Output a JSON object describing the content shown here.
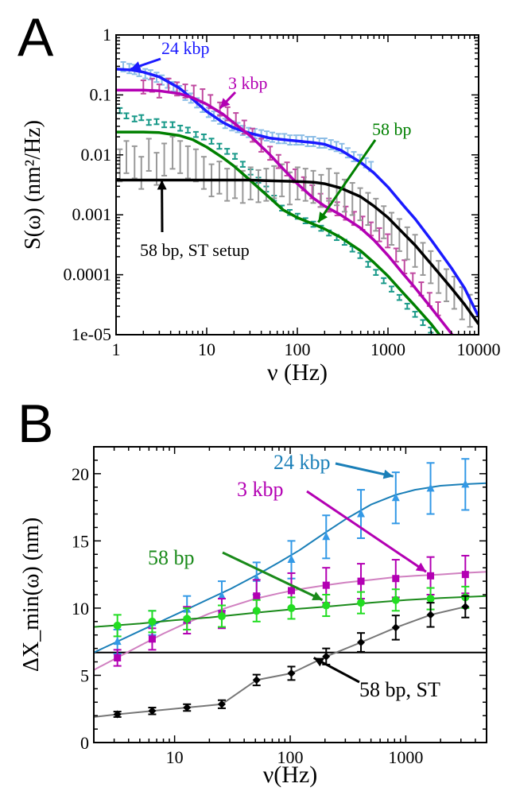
{
  "chart_data": [
    {
      "panel": "A",
      "type": "line",
      "xlabel": "ν (Hz)",
      "ylabel": "S(ω)  (nm²/Hz)",
      "xscale": "log",
      "yscale": "log",
      "xlim": [
        1,
        10000
      ],
      "ylim": [
        1e-05,
        1
      ],
      "x_ticks": [
        "1",
        "10",
        "100",
        "1000",
        "10000"
      ],
      "y_ticks": [
        "1e-05",
        "0.0001",
        "0.001",
        "0.01",
        "0.1",
        "1"
      ],
      "grid": false,
      "colors": {
        "24 kbp": "#1a1aff",
        "3 kbp": "#b300b3",
        "58 bp": "#008000",
        "58 bp, ST setup": "#000000",
        "data_24kbp": "#8cbde6",
        "data_3kbp": "#c04aa0",
        "data_58bp": "#1a9a8a",
        "data_st": "#999999"
      },
      "series": [
        {
          "name": "24 kbp",
          "kind": "fit",
          "x": [
            1,
            1.5,
            2,
            3,
            5,
            7,
            10,
            15,
            20,
            30,
            50,
            70,
            100,
            150,
            200,
            300,
            500,
            700,
            1000,
            1500,
            2000,
            3000,
            5000,
            7000,
            10000
          ],
          "y": [
            0.27,
            0.26,
            0.24,
            0.2,
            0.13,
            0.085,
            0.053,
            0.035,
            0.028,
            0.023,
            0.019,
            0.018,
            0.017,
            0.016,
            0.015,
            0.012,
            0.0075,
            0.005,
            0.0029,
            0.0014,
            0.00085,
            0.00038,
            0.00013,
            6e-05,
            2e-05
          ]
        },
        {
          "name": "3 kbp",
          "kind": "fit",
          "x": [
            1,
            2,
            3,
            5,
            7,
            10,
            15,
            20,
            30,
            50,
            70,
            100,
            150,
            200,
            300,
            500,
            700,
            1000,
            1500,
            2000,
            3000,
            5000,
            7000
          ],
          "y": [
            0.12,
            0.12,
            0.117,
            0.105,
            0.09,
            0.07,
            0.048,
            0.034,
            0.021,
            0.01,
            0.0058,
            0.0033,
            0.0019,
            0.0014,
            0.001,
            0.0006,
            0.00038,
            0.00021,
            0.0001,
            6e-05,
            2.8e-05,
            1.05e-05,
            5e-06
          ]
        },
        {
          "name": "58 bp",
          "kind": "fit",
          "x": [
            1,
            2,
            3,
            5,
            7,
            10,
            15,
            20,
            30,
            50,
            70,
            100,
            150,
            200,
            300,
            500,
            700,
            1000,
            1500,
            2000,
            3000,
            5000
          ],
          "y": [
            0.024,
            0.024,
            0.0235,
            0.021,
            0.018,
            0.0135,
            0.009,
            0.0065,
            0.0038,
            0.0019,
            0.0012,
            0.0009,
            0.0007,
            0.00058,
            0.00042,
            0.00025,
            0.00016,
            9.5e-05,
            4.8e-05,
            3e-05,
            1.5e-05,
            5.6e-06
          ]
        },
        {
          "name": "58 bp, ST setup",
          "kind": "fit",
          "x": [
            1,
            10,
            30,
            50,
            100,
            150,
            200,
            300,
            500,
            700,
            1000,
            1500,
            2000,
            3000,
            5000,
            7000,
            10000
          ],
          "y": [
            0.0038,
            0.0038,
            0.0038,
            0.0037,
            0.0036,
            0.0035,
            0.0033,
            0.0028,
            0.002,
            0.0014,
            0.0009,
            0.00048,
            0.00031,
            0.00015,
            6e-05,
            3.2e-05,
            1.5e-05
          ]
        },
        {
          "name": "24 kbp data",
          "kind": "errorbar",
          "x": [
            1.2,
            1.4,
            1.6,
            1.8,
            2.1,
            2.4,
            2.8,
            3.2,
            3.7,
            4.3,
            5,
            5.8,
            6.7,
            7.8,
            9,
            10.5,
            12,
            14,
            16,
            19,
            22,
            25,
            29,
            34,
            40,
            46,
            53,
            62,
            72,
            83,
            97,
            112,
            130,
            150,
            175,
            200,
            235,
            270,
            310,
            360,
            420,
            490,
            570,
            650
          ],
          "y": [
            0.3,
            0.28,
            0.27,
            0.25,
            0.23,
            0.22,
            0.2,
            0.18,
            0.16,
            0.14,
            0.12,
            0.1,
            0.09,
            0.075,
            0.063,
            0.052,
            0.045,
            0.04,
            0.034,
            0.031,
            0.029,
            0.026,
            0.024,
            0.023,
            0.022,
            0.021,
            0.02,
            0.019,
            0.019,
            0.018,
            0.018,
            0.018,
            0.017,
            0.017,
            0.016,
            0.016,
            0.015,
            0.014,
            0.013,
            0.011,
            0.0095,
            0.0085,
            0.0075,
            0.0065
          ],
          "err_frac": 0.18
        },
        {
          "name": "3 kbp data",
          "kind": "errorbar",
          "x": [
            2,
            2.5,
            3,
            3.8,
            4.7,
            5.8,
            7.2,
            9,
            11,
            14,
            17,
            21,
            26,
            32,
            40,
            50,
            62,
            77,
            95,
            118,
            146,
            180,
            223,
            276,
            342,
            423,
            524,
            648,
            802,
            993,
            1230,
            1520,
            1880,
            2330,
            2880,
            3570
          ],
          "y": [
            0.14,
            0.15,
            0.12,
            0.15,
            0.13,
            0.12,
            0.115,
            0.1,
            0.08,
            0.06,
            0.05,
            0.04,
            0.03,
            0.022,
            0.015,
            0.011,
            0.008,
            0.006,
            0.0046,
            0.0034,
            0.0025,
            0.0018,
            0.0015,
            0.0013,
            0.0011,
            0.0009,
            0.00075,
            0.0006,
            0.00048,
            0.00038,
            0.00022,
            0.00014,
            8.5e-05,
            6e-05,
            4e-05,
            2.8e-05
          ],
          "err_frac": 0.25
        },
        {
          "name": "58 bp data",
          "kind": "errorbar",
          "x": [
            1.1,
            1.3,
            1.6,
            1.9,
            2.3,
            2.8,
            3.4,
            4.2,
            5.1,
            6.2,
            7.6,
            9.3,
            11.3,
            13.8,
            16.8,
            20.5,
            25,
            30.5,
            37.2,
            45.4,
            55.4,
            67.6,
            82.5,
            100.7,
            123,
            150,
            183,
            223,
            272,
            332,
            405,
            494,
            603,
            736,
            898,
            1096,
            1337,
            1632,
            1991,
            2430,
            2965
          ],
          "y": [
            0.055,
            0.045,
            0.04,
            0.042,
            0.035,
            0.036,
            0.032,
            0.032,
            0.028,
            0.026,
            0.022,
            0.02,
            0.017,
            0.014,
            0.0115,
            0.0095,
            0.007,
            0.0052,
            0.0038,
            0.0027,
            0.0019,
            0.0013,
            0.0011,
            0.00095,
            0.0008,
            0.0007,
            0.0006,
            0.0005,
            0.00042,
            0.00035,
            0.00027,
            0.00021,
            0.00015,
            0.00011,
            8e-05,
            5.8e-05,
            4.2e-05,
            3e-05,
            2.2e-05,
            1.6e-05,
            1.2e-05
          ],
          "err_frac": 0.1
        },
        {
          "name": "58 bp, ST setup data",
          "kind": "errorbar",
          "x": [
            1.1,
            1.3,
            1.6,
            1.9,
            2.3,
            2.8,
            3.4,
            4.2,
            5.1,
            6.2,
            7.6,
            9.3,
            11.3,
            13.8,
            16.8,
            20.5,
            25,
            30.5,
            37.2,
            45.4,
            55.4,
            67.6,
            82.5,
            100.7,
            123,
            150,
            183,
            223,
            272,
            332,
            405,
            494,
            603,
            736,
            898,
            1096,
            1337,
            1632,
            1991,
            2430,
            2965,
            3618,
            4415,
            5388,
            6575,
            8024
          ],
          "y": [
            0.008,
            0.011,
            0.009,
            0.006,
            0.012,
            0.007,
            0.01,
            0.013,
            0.011,
            0.009,
            0.008,
            0.006,
            0.0045,
            0.005,
            0.0038,
            0.0042,
            0.0035,
            0.004,
            0.0036,
            0.0038,
            0.0042,
            0.0045,
            0.0033,
            0.004,
            0.0038,
            0.0035,
            0.003,
            0.0038,
            0.0032,
            0.0025,
            0.0022,
            0.0018,
            0.0015,
            0.0012,
            0.0009,
            0.0007,
            0.00055,
            0.0004,
            0.0003,
            0.00022,
            0.00016,
            0.00011,
            8e-05,
            6e-05,
            4e-05,
            3e-05
          ],
          "err_frac": 0.55
        }
      ],
      "annotations": [
        {
          "text": "24 kbp",
          "arrow_to": [
            1.45,
            0.27
          ]
        },
        {
          "text": "3 kbp",
          "arrow_to": [
            14,
            0.06
          ]
        },
        {
          "text": "58 bp",
          "arrow_to": [
            170,
            0.00075
          ]
        },
        {
          "text": "58 bp, ST setup",
          "arrow_to": [
            3.2,
            0.0038
          ]
        }
      ]
    },
    {
      "panel": "B",
      "type": "line",
      "xlabel": "ν(Hz)",
      "ylabel": "ΔX_min(ω)  (nm)",
      "xscale": "log",
      "xlim": [
        2,
        5000
      ],
      "ylim": [
        0,
        22
      ],
      "x_ticks": [
        "10",
        "100",
        "1000"
      ],
      "y_ticks": [
        "0",
        "5",
        "10",
        "15",
        "20"
      ],
      "grid": false,
      "reference_line": 6.7,
      "colors": {
        "24 kbp": "#3399e6",
        "3 kbp": "#b300b3",
        "58 bp": "#22dd22",
        "58 bp, ST": "#000000",
        "fit_24kbp": "#1a7fb8",
        "fit_3kbp": "#d080c0",
        "fit_58bp": "#1a8a1a",
        "fit_st": "#777777",
        "arrow_24kbp": "#1a7fb8",
        "arrow_3kbp": "#b300b3",
        "arrow_58bp": "#1a8a1a"
      },
      "series": [
        {
          "name": "24 kbp",
          "marker": "triangle",
          "x": [
            3.2,
            6.4,
            12.8,
            25.6,
            51.2,
            102.4,
            204.8,
            409.6,
            819.2,
            1638.4,
            3276.8
          ],
          "y": [
            7.5,
            8.9,
            9.9,
            10.9,
            12.2,
            13.6,
            15.3,
            17.0,
            18.2,
            18.9,
            19.2
          ],
          "err": [
            0.9,
            0.9,
            1.0,
            1.1,
            1.2,
            1.4,
            1.6,
            1.8,
            1.9,
            1.9,
            1.9
          ]
        },
        {
          "name": "3 kbp",
          "marker": "square",
          "x": [
            3.2,
            6.4,
            12.8,
            25.6,
            51.2,
            102.4,
            204.8,
            409.6,
            819.2,
            1638.4,
            3276.8
          ],
          "y": [
            6.3,
            7.7,
            9.1,
            9.6,
            10.9,
            11.3,
            11.7,
            12.0,
            12.2,
            12.4,
            12.5
          ],
          "err": [
            0.6,
            0.8,
            1.0,
            1.1,
            1.2,
            1.3,
            1.3,
            1.3,
            1.4,
            1.4,
            1.4
          ]
        },
        {
          "name": "58 bp",
          "marker": "circle",
          "x": [
            3.2,
            6.4,
            12.8,
            25.6,
            51.2,
            102.4,
            204.8,
            409.6,
            819.2,
            1638.4,
            3276.8
          ],
          "y": [
            8.7,
            9.0,
            9.2,
            9.4,
            9.8,
            10.0,
            10.2,
            10.4,
            10.6,
            10.7,
            10.8
          ],
          "err": [
            0.8,
            0.8,
            0.8,
            0.8,
            0.8,
            0.8,
            0.8,
            0.8,
            0.8,
            0.8,
            0.8
          ]
        },
        {
          "name": "58 bp, ST",
          "marker": "diamond",
          "x": [
            3.2,
            6.4,
            12.8,
            25.6,
            51.2,
            102.4,
            204.8,
            409.6,
            819.2,
            1638.4,
            3276.8
          ],
          "y": [
            2.1,
            2.35,
            2.6,
            2.85,
            4.65,
            5.15,
            6.4,
            7.45,
            8.55,
            9.5,
            10.1
          ],
          "err": [
            0.2,
            0.25,
            0.25,
            0.3,
            0.4,
            0.5,
            0.6,
            0.7,
            0.9,
            0.9,
            0.8
          ]
        }
      ],
      "fits": [
        {
          "name": "24 kbp",
          "x": [
            2,
            3,
            5,
            8,
            12,
            20,
            30,
            50,
            80,
            120,
            200,
            300,
            500,
            800,
            1200,
            2000,
            3000,
            5000
          ],
          "y": [
            6.7,
            7.4,
            8.3,
            9.1,
            9.8,
            10.7,
            11.4,
            12.4,
            13.4,
            14.3,
            15.6,
            16.6,
            17.7,
            18.4,
            18.8,
            19.1,
            19.2,
            19.3
          ]
        },
        {
          "name": "3 kbp",
          "x": [
            2,
            3,
            5,
            8,
            12,
            20,
            30,
            50,
            80,
            120,
            200,
            300,
            500,
            800,
            1200,
            2000,
            3000,
            5000
          ],
          "y": [
            5.4,
            6.2,
            7.2,
            8.1,
            8.8,
            9.6,
            10.1,
            10.7,
            11.1,
            11.4,
            11.7,
            11.9,
            12.1,
            12.3,
            12.4,
            12.5,
            12.6,
            12.7
          ]
        },
        {
          "name": "58 bp",
          "x": [
            2,
            5,
            10,
            20,
            50,
            100,
            200,
            500,
            1000,
            2000,
            5000
          ],
          "y": [
            8.6,
            8.85,
            9.1,
            9.3,
            9.65,
            9.9,
            10.1,
            10.4,
            10.6,
            10.75,
            10.9
          ]
        },
        {
          "name": "58 bp, ST",
          "x": [
            2,
            3.2,
            6.4,
            12.8,
            25.6,
            51.2,
            102.4,
            204.8,
            409.6,
            819.2,
            1638.4,
            3276.8
          ],
          "y": [
            1.9,
            2.1,
            2.35,
            2.6,
            2.85,
            4.65,
            5.15,
            6.4,
            7.45,
            8.55,
            9.5,
            10.1
          ]
        }
      ],
      "annotations": [
        {
          "text": "24 kbp",
          "arrow_to": [
            780,
            19.8
          ]
        },
        {
          "text": "3 kbp",
          "arrow_to": [
            1500,
            12.7
          ]
        },
        {
          "text": "58 bp",
          "arrow_to": [
            190,
            10.6
          ]
        },
        {
          "text": "58 bp, ST",
          "arrow_to": [
            160,
            6.3
          ]
        }
      ]
    }
  ],
  "panel_labels": [
    "A",
    "B"
  ]
}
